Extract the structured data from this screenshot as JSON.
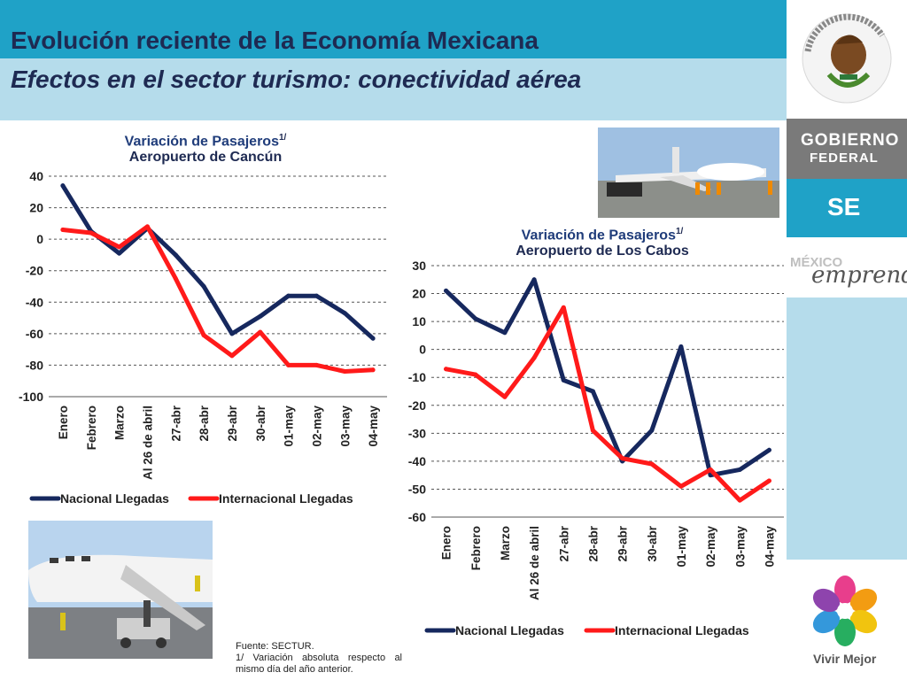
{
  "header": {
    "title": "Evolución reciente de la Economía Mexicana",
    "subtitle": "Efectos en el sector turismo: conectividad aérea"
  },
  "sidebar": {
    "seal_text": "ESTADOS UNIDOS MEXICANOS",
    "gobierno_line1": "GOBIERNO",
    "gobierno_line2": "FEDERAL",
    "se_label": "SE",
    "mexico_label": "MÉXICO",
    "emprende_label": "emprende",
    "vivir_mejor_label": "Vivir Mejor"
  },
  "footnote": {
    "source": "Fuente: SECTUR.",
    "note": "1/ Variación absoluta respecto al mismo día del año anterior."
  },
  "colors": {
    "nacional": "#16285e",
    "internacional": "#ff1a1a",
    "header_dark": "#1fa2c7",
    "header_light": "#b5dceb"
  },
  "chart_data": [
    {
      "type": "line",
      "title": "Variación de Pasajeros",
      "title_sup": "1/",
      "subtitle": "Aeropuerto de Cancún",
      "categories": [
        "Enero",
        "Febrero",
        "Marzo",
        "Al 26 de abril",
        "27-abr",
        "28-abr",
        "29-abr",
        "30-abr",
        "01-may",
        "02-may",
        "03-may",
        "04-may"
      ],
      "ylim": [
        -100,
        40
      ],
      "yticks": [
        40,
        20,
        0,
        -20,
        -40,
        -60,
        -80,
        -100
      ],
      "grid": true,
      "legend_position": "bottom",
      "series": [
        {
          "name": "Nacional  Llegadas",
          "values": [
            34,
            5,
            -9,
            7,
            -10,
            -30,
            -60,
            -49,
            -36,
            -36,
            -47,
            -63
          ]
        },
        {
          "name": "Internacional  Llegadas",
          "values": [
            6,
            4,
            -5,
            8,
            -25,
            -61,
            -74,
            -59,
            -80,
            -80,
            -84,
            -83
          ]
        }
      ]
    },
    {
      "type": "line",
      "title": "Variación de Pasajeros",
      "title_sup": "1/",
      "subtitle": "Aeropuerto de Los Cabos",
      "categories": [
        "Enero",
        "Febrero",
        "Marzo",
        "Al 26 de abril",
        "27-abr",
        "28-abr",
        "29-abr",
        "30-abr",
        "01-may",
        "02-may",
        "03-may",
        "04-may"
      ],
      "ylim": [
        -60,
        30
      ],
      "yticks": [
        30,
        20,
        10,
        0,
        -10,
        -20,
        -30,
        -40,
        -50,
        -60
      ],
      "grid": true,
      "legend_position": "bottom",
      "series": [
        {
          "name": "Nacional Llegadas",
          "values": [
            21,
            11,
            6,
            25,
            -11,
            -15,
            -40,
            -29,
            1,
            -45,
            -43,
            -36
          ]
        },
        {
          "name": "Internacional Llegadas",
          "values": [
            -7,
            -9,
            -17,
            -3,
            15,
            -29,
            -39,
            -41,
            -49,
            -43,
            -54,
            -47
          ]
        }
      ]
    }
  ]
}
